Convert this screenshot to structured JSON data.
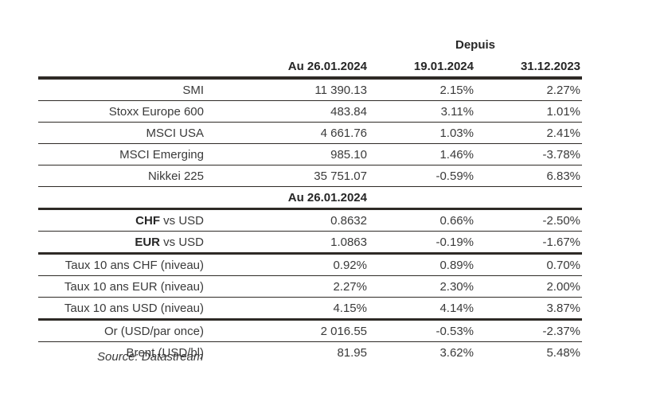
{
  "table": {
    "header": {
      "depuis_label": "Depuis",
      "col_value": "Au 26.01.2024",
      "col_since_week": "19.01.2024",
      "col_since_year": "31.12.2023"
    },
    "subheader": {
      "label": "Au 26.01.2024"
    },
    "source": "Source: Datastream",
    "colors": {
      "rule_line": "#2e2a26",
      "text": "#3a3a3a"
    },
    "rows": [
      {
        "label": "SMI",
        "value": "11 390.13",
        "pct_week": "2.15%",
        "pct_ytd": "2.27%"
      },
      {
        "label": "Stoxx Europe 600",
        "value": "483.84",
        "pct_week": "3.11%",
        "pct_ytd": "1.01%"
      },
      {
        "label": "MSCI USA",
        "value": "4 661.76",
        "pct_week": "1.03%",
        "pct_ytd": "2.41%"
      },
      {
        "label": "MSCI Emerging",
        "value": "985.10",
        "pct_week": "1.46%",
        "pct_ytd": "-3.78%"
      },
      {
        "label": "Nikkei 225",
        "value": "35 751.07",
        "pct_week": "-0.59%",
        "pct_ytd": "6.83%"
      },
      {
        "label_bold": "CHF",
        "label_rest": " vs USD",
        "value": "0.8632",
        "pct_week": "0.66%",
        "pct_ytd": "-2.50%"
      },
      {
        "label_bold": "EUR",
        "label_rest": " vs USD",
        "value": "1.0863",
        "pct_week": "-0.19%",
        "pct_ytd": "-1.67%"
      },
      {
        "label": "Taux 10 ans CHF (niveau)",
        "value": "0.92%",
        "pct_week": "0.89%",
        "pct_ytd": "0.70%"
      },
      {
        "label": "Taux 10 ans EUR (niveau)",
        "value": "2.27%",
        "pct_week": "2.30%",
        "pct_ytd": "2.00%"
      },
      {
        "label": "Taux 10 ans USD (niveau)",
        "value": "4.15%",
        "pct_week": "4.14%",
        "pct_ytd": "3.87%"
      },
      {
        "label": "Or (USD/par once)",
        "value": "2 016.55",
        "pct_week": "-0.53%",
        "pct_ytd": "-2.37%"
      },
      {
        "label": "Brent (USD/bl)",
        "value": "81.95",
        "pct_week": "3.62%",
        "pct_ytd": "5.48%"
      }
    ]
  }
}
